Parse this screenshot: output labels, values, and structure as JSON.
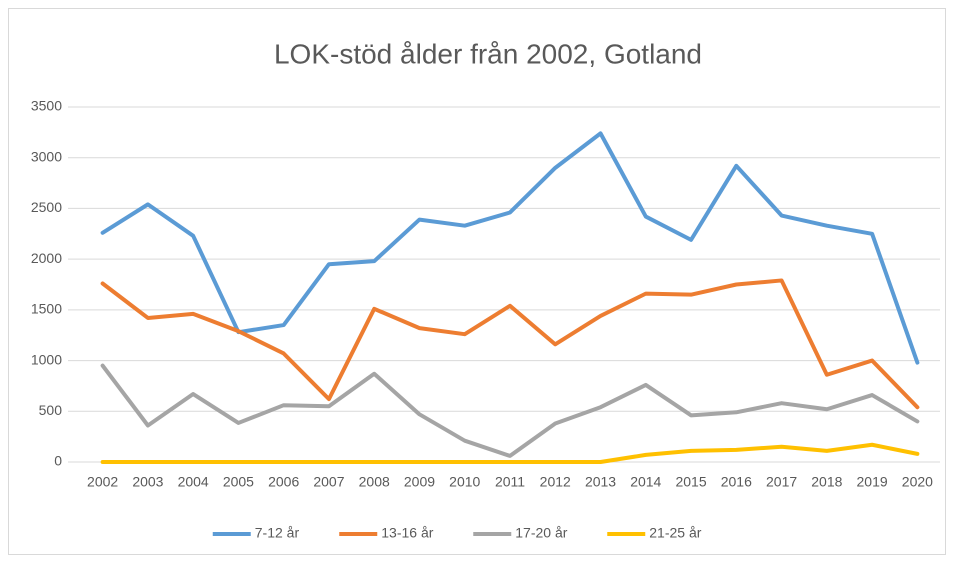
{
  "chart_data": {
    "type": "line",
    "title": "LOK-stöd ålder från 2002, Gotland",
    "categories": [
      "2002",
      "2003",
      "2004",
      "2005",
      "2006",
      "2007",
      "2008",
      "2009",
      "2010",
      "2011",
      "2012",
      "2013",
      "2014",
      "2015",
      "2016",
      "2017",
      "2018",
      "2019",
      "2020"
    ],
    "series": [
      {
        "name": "7-12 år",
        "color": "#5b9bd5",
        "values": [
          2260,
          2540,
          2230,
          1280,
          1350,
          1950,
          1980,
          2390,
          2330,
          2460,
          2900,
          3240,
          2420,
          2190,
          2920,
          2430,
          2330,
          2250,
          980
        ]
      },
      {
        "name": "13-16 år",
        "color": "#ed7d31",
        "values": [
          1760,
          1420,
          1460,
          1290,
          1070,
          620,
          1510,
          1320,
          1260,
          1540,
          1160,
          1440,
          1660,
          1650,
          1750,
          1790,
          860,
          1000,
          540
        ]
      },
      {
        "name": "17-20 år",
        "color": "#a5a5a5",
        "values": [
          950,
          360,
          670,
          385,
          560,
          550,
          870,
          470,
          210,
          60,
          380,
          540,
          760,
          460,
          490,
          580,
          520,
          660,
          400
        ]
      },
      {
        "name": "21-25 år",
        "color": "#ffc000",
        "values": [
          0,
          0,
          0,
          0,
          0,
          0,
          0,
          0,
          0,
          0,
          0,
          0,
          70,
          110,
          120,
          150,
          110,
          170,
          80
        ]
      }
    ],
    "ylim": [
      0,
      3500
    ],
    "yticks": [
      0,
      500,
      1000,
      1500,
      2000,
      2500,
      3000,
      3500
    ],
    "grid": true,
    "legend": "bottom"
  }
}
